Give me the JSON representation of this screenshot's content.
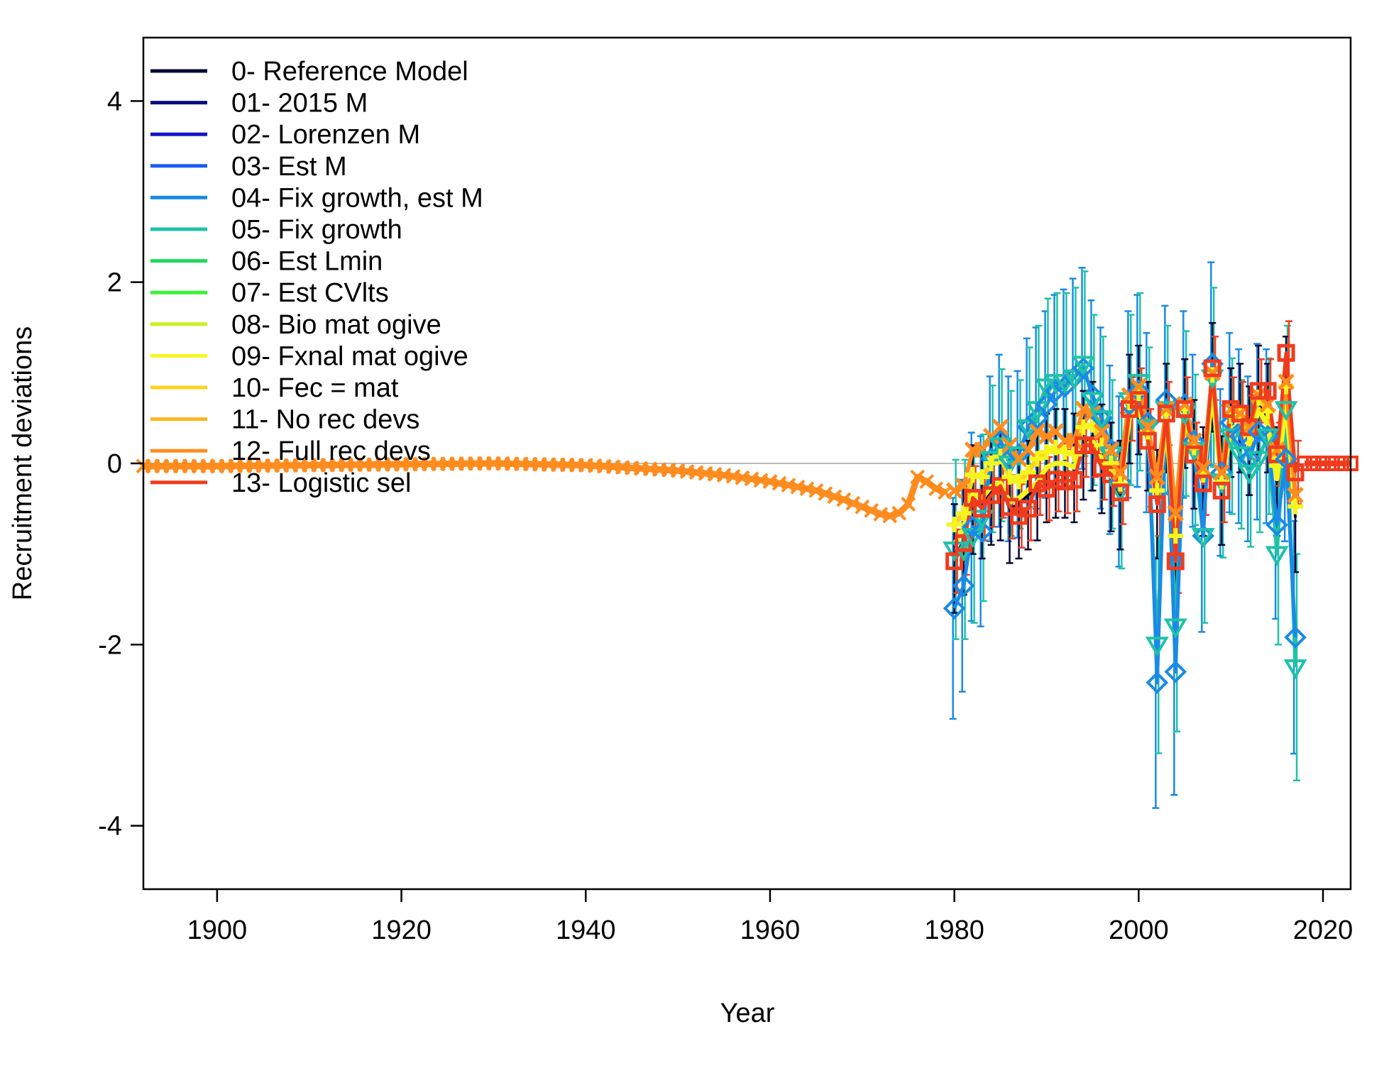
{
  "chart_data": {
    "type": "line",
    "title": "",
    "xlabel": "Year",
    "ylabel": "Recruitment deviations",
    "xlim": [
      1892,
      2023
    ],
    "ylim": [
      -4.7,
      4.7
    ],
    "xticks": [
      1900,
      1920,
      1940,
      1960,
      1980,
      2000,
      2020
    ],
    "yticks": [
      -4,
      -2,
      0,
      2,
      4
    ],
    "grid": false,
    "legend_position": "top-left",
    "reference_line": {
      "y": 0,
      "color": "#bdbdbd"
    },
    "series": [
      {
        "name": "0- Reference Model",
        "color": "#050533"
      },
      {
        "name": "01- 2015 M",
        "color": "#0b0b80"
      },
      {
        "name": "02- Lorenzen M",
        "color": "#1414cc"
      },
      {
        "name": "03- Est M",
        "color": "#1a5cf2"
      },
      {
        "name": "04- Fix growth, est M",
        "color": "#1a8ae6"
      },
      {
        "name": "05- Fix growth",
        "color": "#1ec2a8"
      },
      {
        "name": "06- Est Lmin",
        "color": "#1ed95c"
      },
      {
        "name": "07- Est CVlts",
        "color": "#3af23a"
      },
      {
        "name": "08- Bio mat ogive",
        "color": "#c8f01e"
      },
      {
        "name": "09- Fxnal mat ogive",
        "color": "#f5f51e"
      },
      {
        "name": "10- Fec = mat",
        "color": "#ffd21e"
      },
      {
        "name": "11- No rec devs",
        "color": "#ffb41e"
      },
      {
        "name": "12- Full rec devs",
        "color": "#ff8c1e"
      },
      {
        "name": "13- Logistic sel",
        "color": "#f03c1e"
      }
    ],
    "early_devs": {
      "series": "12- Full rec devs",
      "color": "#ff8c1e",
      "x": [
        1892,
        1900,
        1910,
        1920,
        1930,
        1940,
        1945,
        1950,
        1955,
        1960,
        1965,
        1968,
        1970,
        1972,
        1973,
        1974,
        1975,
        1976,
        1977,
        1978,
        1979
      ],
      "y": [
        -0.03,
        -0.03,
        -0.02,
        -0.01,
        0.0,
        -0.02,
        -0.05,
        -0.08,
        -0.13,
        -0.2,
        -0.3,
        -0.4,
        -0.48,
        -0.56,
        -0.58,
        -0.55,
        -0.45,
        -0.15,
        -0.2,
        -0.28,
        -0.32
      ]
    },
    "estimated_devs": {
      "x": [
        1980,
        1981,
        1982,
        1983,
        1984,
        1985,
        1986,
        1987,
        1988,
        1989,
        1990,
        1991,
        1992,
        1993,
        1994,
        1995,
        1996,
        1997,
        1998,
        1999,
        2000,
        2001,
        2002,
        2003,
        2004,
        2005,
        2006,
        2007,
        2008,
        2009,
        2010,
        2011,
        2012,
        2013,
        2014,
        2015,
        2016,
        2017
      ],
      "reference": [
        -1.05,
        -0.85,
        -0.4,
        -0.45,
        -0.3,
        -0.25,
        -0.5,
        -0.45,
        -0.35,
        -0.25,
        -0.05,
        0.0,
        0.0,
        -0.05,
        0.2,
        0.3,
        0.05,
        -0.15,
        -0.35,
        0.6,
        0.7,
        0.3,
        -0.45,
        0.5,
        -1.05,
        0.55,
        0.1,
        -0.2,
        0.95,
        -0.3,
        0.45,
        0.5,
        0.25,
        0.7,
        0.5,
        -0.2,
        0.8,
        -0.6
      ],
      "logistic_sel": [
        -1.08,
        -0.88,
        -0.38,
        -0.5,
        -0.35,
        -0.25,
        -0.48,
        -0.58,
        -0.5,
        -0.22,
        -0.28,
        -0.18,
        -0.2,
        -0.18,
        0.2,
        0.2,
        -0.05,
        -0.12,
        -0.32,
        0.6,
        0.7,
        0.25,
        -0.45,
        0.55,
        -1.08,
        0.6,
        0.1,
        -0.22,
        1.05,
        -0.3,
        0.6,
        0.55,
        0.4,
        0.8,
        0.8,
        0.1,
        1.22,
        -0.1
      ],
      "full_rec_devs": [
        -0.3,
        -0.25,
        0.15,
        0.15,
        0.3,
        0.4,
        0.2,
        0.05,
        0.15,
        0.35,
        0.3,
        0.35,
        0.25,
        0.25,
        0.6,
        0.55,
        0.35,
        0.15,
        -0.1,
        0.75,
        0.85,
        0.4,
        -0.15,
        0.6,
        -0.55,
        0.65,
        0.25,
        -0.05,
        1.0,
        -0.1,
        0.6,
        0.55,
        0.4,
        0.75,
        0.65,
        0.15,
        0.9,
        -0.35
      ],
      "fix_growth": [
        -0.95,
        -0.95,
        -0.8,
        -0.6,
        0.05,
        0.2,
        0.0,
        0.1,
        0.4,
        0.6,
        0.85,
        0.9,
        0.9,
        0.95,
        1.1,
        0.7,
        0.5,
        0.1,
        -0.3,
        0.7,
        0.9,
        0.4,
        -2.0,
        0.6,
        -1.8,
        0.55,
        0.15,
        -0.8,
        0.95,
        -0.2,
        0.3,
        0.1,
        -0.1,
        0.05,
        0.3,
        -1.0,
        0.6,
        -2.25
      ],
      "fix_growth_est_m": [
        -1.6,
        -1.35,
        -0.7,
        -0.75,
        0.05,
        0.25,
        0.05,
        0.1,
        0.4,
        0.5,
        0.65,
        0.8,
        0.85,
        0.95,
        1.05,
        0.75,
        0.5,
        0.15,
        -0.2,
        0.65,
        0.8,
        0.45,
        -2.42,
        0.7,
        -2.3,
        0.65,
        0.25,
        -0.8,
        1.1,
        -0.1,
        0.45,
        0.3,
        0.05,
        0.35,
        0.3,
        -0.68,
        0.05,
        -1.92
      ],
      "no_rec_devs": [
        0.0,
        0.0,
        0.0,
        0.0,
        0.0,
        0.0,
        0.0,
        0.0,
        0.0,
        0.0,
        0.0,
        0.0,
        0.0,
        0.0,
        0.0,
        0.0,
        0.0,
        0.0,
        0.0,
        0.0,
        0.0,
        0.0,
        0.0,
        0.0,
        0.0,
        0.0,
        0.0,
        0.0,
        0.0,
        0.0,
        0.0,
        0.0,
        0.0,
        0.0,
        0.0,
        0.0,
        0.0,
        0.0
      ]
    },
    "forecast_devs": {
      "color": "#f03c1e",
      "x": [
        2018,
        2019,
        2020,
        2021,
        2022,
        2023
      ],
      "y": [
        0.0,
        0.0,
        0.0,
        0.0,
        0.0,
        0.0
      ]
    }
  }
}
